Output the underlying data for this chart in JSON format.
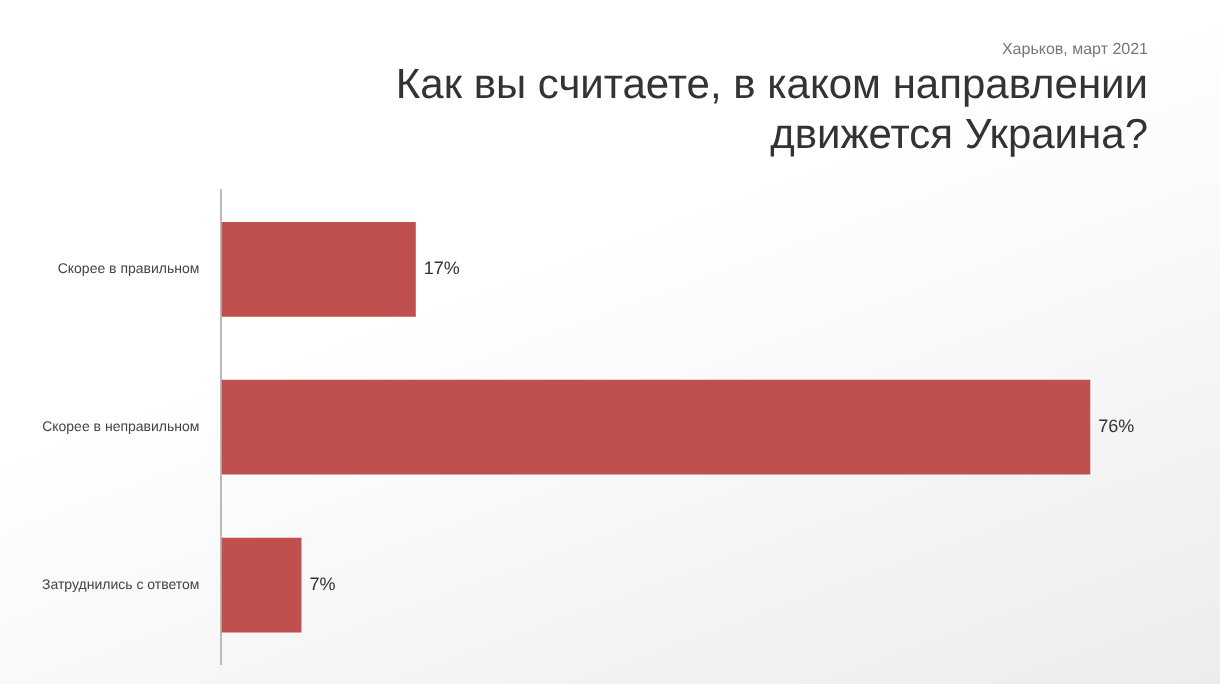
{
  "chart_data": {
    "type": "bar",
    "orientation": "horizontal",
    "title": "Как вы считаете, в каком направлении движется Украина?",
    "subtitle": "Харьков, март 2021",
    "categories": [
      "Скорее в правильном",
      "Скорее в неправильном",
      "Затруднились с ответом"
    ],
    "values": [
      17,
      76,
      7
    ],
    "color": "#c0504d",
    "value_labels": [
      "17%",
      "76%",
      "7%"
    ],
    "legend": false
  }
}
